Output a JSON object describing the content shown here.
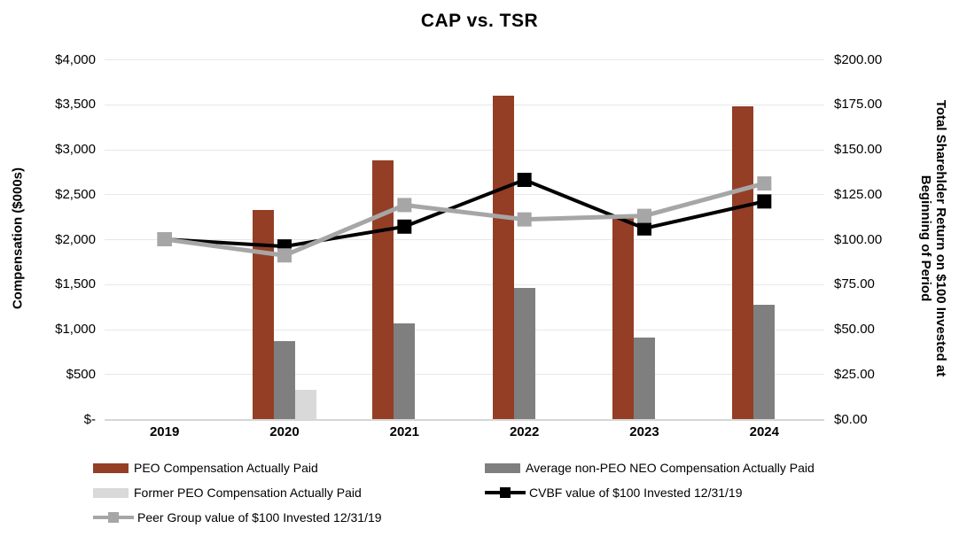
{
  "chart_data": {
    "type": "combo-bar-line",
    "title": "CAP vs. TSR",
    "categories": [
      "2019",
      "2020",
      "2021",
      "2022",
      "2023",
      "2024"
    ],
    "left_axis": {
      "label": "Compensation ($000s)",
      "lim": [
        0,
        4000
      ],
      "tick_step": 500,
      "ticks": [
        "$4,000",
        "$3,500",
        "$3,000",
        "$2,500",
        "$2,000",
        "$1,500",
        "$1,000",
        "$500",
        "$-"
      ]
    },
    "right_axis": {
      "label_line_1": "Total Sharehlder Return on $100 Invested at",
      "label_line_2": "Beginning of Period",
      "lim": [
        0,
        200
      ],
      "tick_step": 25,
      "ticks": [
        "$200.00",
        "$175.00",
        "$150.00",
        "$125.00",
        "$100.00",
        "$75.00",
        "$50.00",
        "$25.00",
        "$0.00"
      ]
    },
    "grid": true,
    "legend_position": "bottom",
    "bar_series": [
      {
        "id": "peo-cap",
        "name": "PEO Compensation Actually Paid",
        "color": "#943E26",
        "axis": "left",
        "values": [
          null,
          2330,
          2880,
          3600,
          2240,
          3480
        ]
      },
      {
        "id": "avg-neo-cap",
        "name": "Average non-PEO NEO Compensation Actually Paid",
        "color": "#7F7F7F",
        "axis": "left",
        "values": [
          null,
          870,
          1060,
          1460,
          910,
          1270
        ]
      },
      {
        "id": "former-peo-cap",
        "name": "Former PEO Compensation Actually Paid",
        "color": "#D9D9D9",
        "axis": "left",
        "values": [
          null,
          325,
          null,
          null,
          null,
          null
        ]
      }
    ],
    "line_series": [
      {
        "id": "cvbf-tsr",
        "name": "CVBF value of $100 Invested 12/31/19",
        "color": "#000000",
        "axis": "right",
        "marker": "square",
        "values": [
          100,
          96,
          107,
          133,
          106,
          121
        ]
      },
      {
        "id": "peer-tsr",
        "name": "Peer Group value of $100 Invested 12/31/19",
        "color": "#A6A6A6",
        "axis": "right",
        "marker": "square",
        "values": [
          100,
          91,
          119,
          111,
          113,
          131
        ]
      }
    ]
  },
  "legend": {
    "columns": [
      {
        "items": [
          {
            "id": "peo-cap",
            "label": "PEO Compensation Actually Paid",
            "swatch": "bar",
            "color": "#943E26"
          },
          {
            "id": "former-peo-cap",
            "label": "Former PEO Compensation Actually Paid",
            "swatch": "bar",
            "color": "#D9D9D9"
          },
          {
            "id": "peer-tsr",
            "label": "Peer Group value of $100 Invested 12/31/19",
            "swatch": "line",
            "color": "#A6A6A6"
          }
        ]
      },
      {
        "items": [
          {
            "id": "avg-neo-cap",
            "label": "Average non-PEO NEO Compensation Actually Paid",
            "swatch": "bar",
            "color": "#7F7F7F"
          },
          {
            "id": "cvbf-tsr",
            "label": "CVBF value of $100 Invested 12/31/19",
            "swatch": "line",
            "color": "#000000"
          }
        ]
      }
    ]
  }
}
